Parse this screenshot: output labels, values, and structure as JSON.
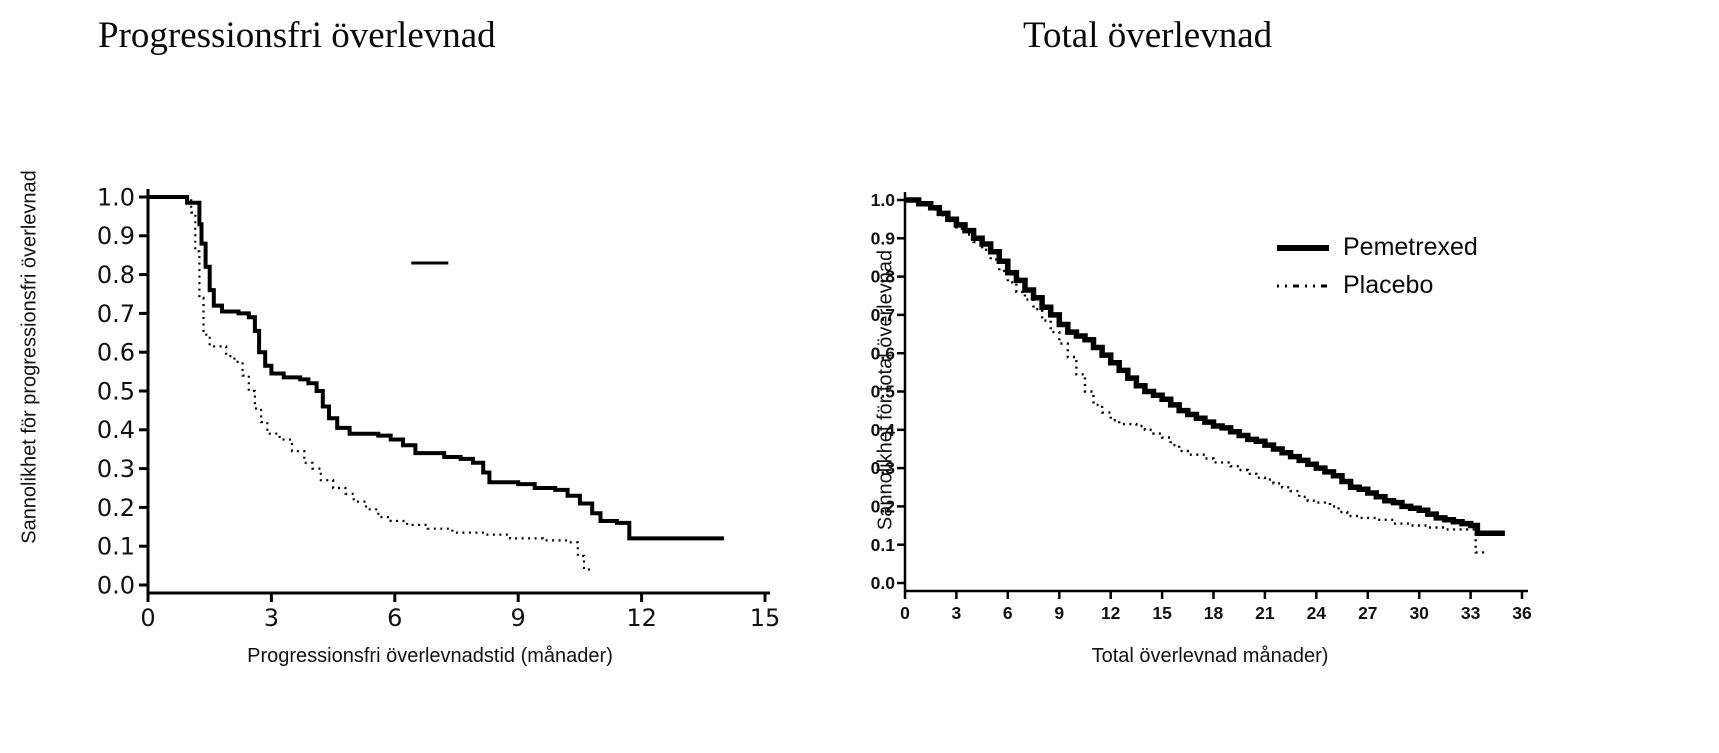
{
  "figure": {
    "background_color": "#ffffff",
    "curve_color": "#000000",
    "text_color": "#111111",
    "description": "Two Kaplan-Meier survival curves comparing Pemetrexed vs Placebo"
  },
  "chart_data": [
    {
      "type": "line",
      "subtype": "kaplan-meier-step",
      "title": "Progressionsfri överlevnad",
      "xlabel": "Progressionsfri överlevnadstid (månader)",
      "ylabel": "Sannolikhet för progressionsfri överlevnad",
      "xlim": [
        0,
        15
      ],
      "ylim": [
        0.0,
        1.0
      ],
      "xticks": [
        0,
        3,
        6,
        9,
        12,
        15
      ],
      "xtick_labels": [
        "0",
        "3",
        "6",
        "9",
        "12",
        "15"
      ],
      "yticks": [
        1.0,
        0.9,
        0.8,
        0.7,
        0.6,
        0.5,
        0.4,
        0.3,
        0.2,
        0.1,
        0.0
      ],
      "ytick_labels": [
        "1.0",
        "0.9",
        "0.8",
        "0.7",
        "0.6",
        "0.5",
        "0.4",
        "0.3",
        "0.2",
        "0.1",
        "0.0"
      ],
      "grid": false,
      "legend": "none",
      "series": [
        {
          "name": "Pemetrexed",
          "style": "solid",
          "line_width": 4,
          "color": "#000000",
          "points": [
            [
              0,
              1.0
            ],
            [
              0.85,
              1.0
            ],
            [
              0.95,
              0.985
            ],
            [
              1.15,
              0.985
            ],
            [
              1.25,
              0.93
            ],
            [
              1.3,
              0.88
            ],
            [
              1.4,
              0.82
            ],
            [
              1.5,
              0.76
            ],
            [
              1.6,
              0.72
            ],
            [
              1.8,
              0.705
            ],
            [
              2.2,
              0.7
            ],
            [
              2.45,
              0.69
            ],
            [
              2.6,
              0.655
            ],
            [
              2.7,
              0.6
            ],
            [
              2.85,
              0.565
            ],
            [
              3.0,
              0.545
            ],
            [
              3.3,
              0.535
            ],
            [
              3.7,
              0.53
            ],
            [
              3.9,
              0.52
            ],
            [
              4.1,
              0.5
            ],
            [
              4.25,
              0.46
            ],
            [
              4.4,
              0.43
            ],
            [
              4.6,
              0.405
            ],
            [
              4.9,
              0.39
            ],
            [
              5.6,
              0.385
            ],
            [
              5.9,
              0.375
            ],
            [
              6.2,
              0.36
            ],
            [
              6.5,
              0.34
            ],
            [
              7.2,
              0.33
            ],
            [
              7.6,
              0.325
            ],
            [
              7.9,
              0.315
            ],
            [
              8.15,
              0.29
            ],
            [
              8.3,
              0.265
            ],
            [
              9.0,
              0.26
            ],
            [
              9.4,
              0.25
            ],
            [
              9.9,
              0.245
            ],
            [
              10.2,
              0.23
            ],
            [
              10.5,
              0.21
            ],
            [
              10.8,
              0.185
            ],
            [
              11.0,
              0.165
            ],
            [
              11.4,
              0.16
            ],
            [
              11.7,
              0.12
            ],
            [
              14.0,
              0.12
            ]
          ]
        },
        {
          "name": "Placebo",
          "style": "dotted",
          "line_width": 2.2,
          "color": "#000000",
          "points": [
            [
              0,
              1.0
            ],
            [
              0.9,
              1.0
            ],
            [
              1.05,
              0.96
            ],
            [
              1.15,
              0.86
            ],
            [
              1.25,
              0.74
            ],
            [
              1.35,
              0.645
            ],
            [
              1.5,
              0.615
            ],
            [
              1.9,
              0.59
            ],
            [
              2.1,
              0.575
            ],
            [
              2.3,
              0.54
            ],
            [
              2.45,
              0.5
            ],
            [
              2.6,
              0.455
            ],
            [
              2.75,
              0.42
            ],
            [
              2.9,
              0.39
            ],
            [
              3.2,
              0.375
            ],
            [
              3.5,
              0.345
            ],
            [
              3.8,
              0.315
            ],
            [
              4.0,
              0.3
            ],
            [
              4.2,
              0.27
            ],
            [
              4.5,
              0.25
            ],
            [
              4.8,
              0.235
            ],
            [
              5.0,
              0.215
            ],
            [
              5.3,
              0.195
            ],
            [
              5.6,
              0.175
            ],
            [
              5.9,
              0.165
            ],
            [
              6.3,
              0.155
            ],
            [
              6.8,
              0.145
            ],
            [
              7.4,
              0.135
            ],
            [
              8.2,
              0.13
            ],
            [
              8.8,
              0.12
            ],
            [
              9.6,
              0.115
            ],
            [
              10.2,
              0.11
            ],
            [
              10.45,
              0.075
            ],
            [
              10.6,
              0.04
            ],
            [
              10.8,
              0.04
            ]
          ]
        }
      ],
      "annotations": [
        {
          "type": "segment",
          "x1": 6.4,
          "x2": 7.3,
          "y": 0.83
        }
      ]
    },
    {
      "type": "line",
      "subtype": "kaplan-meier-step",
      "title": "Total överlevnad",
      "xlabel": "Total överlevnad månader)",
      "ylabel": "Sannolikhet för total överlevnad",
      "xlim": [
        0,
        36
      ],
      "ylim": [
        0.0,
        1.0
      ],
      "xticks": [
        0,
        3,
        6,
        9,
        12,
        15,
        18,
        21,
        24,
        27,
        30,
        33,
        36
      ],
      "xtick_labels": [
        "0",
        "3",
        "6",
        "9",
        "12",
        "15",
        "18",
        "21",
        "24",
        "27",
        "30",
        "33",
        "36"
      ],
      "yticks": [
        1.0,
        0.9,
        0.8,
        0.7,
        0.6,
        0.5,
        0.4,
        0.3,
        0.2,
        0.1,
        0.0
      ],
      "ytick_labels": [
        "1.0",
        "0.9",
        "0.8",
        "0.7",
        "0.6",
        "0.5",
        "0.4",
        "0.3",
        "0.2",
        "0.1",
        "0.0"
      ],
      "grid": false,
      "legend": {
        "position": "upper right",
        "entries": [
          "Pemetrexed",
          "Placebo"
        ]
      },
      "series": [
        {
          "name": "Pemetrexed",
          "style": "solid",
          "line_width": 5.5,
          "color": "#000000",
          "points": [
            [
              0,
              1.0
            ],
            [
              0.8,
              0.99
            ],
            [
              1.5,
              0.98
            ],
            [
              2.0,
              0.965
            ],
            [
              2.5,
              0.95
            ],
            [
              3.0,
              0.935
            ],
            [
              3.5,
              0.92
            ],
            [
              4.0,
              0.9
            ],
            [
              4.5,
              0.885
            ],
            [
              5.0,
              0.865
            ],
            [
              5.5,
              0.84
            ],
            [
              6.0,
              0.81
            ],
            [
              6.5,
              0.79
            ],
            [
              7.0,
              0.765
            ],
            [
              7.5,
              0.745
            ],
            [
              8.0,
              0.72
            ],
            [
              8.5,
              0.7
            ],
            [
              9.0,
              0.675
            ],
            [
              9.5,
              0.655
            ],
            [
              10.0,
              0.645
            ],
            [
              10.5,
              0.635
            ],
            [
              11.0,
              0.615
            ],
            [
              11.5,
              0.595
            ],
            [
              12.0,
              0.575
            ],
            [
              12.5,
              0.555
            ],
            [
              13.0,
              0.535
            ],
            [
              13.5,
              0.515
            ],
            [
              14.0,
              0.5
            ],
            [
              14.5,
              0.49
            ],
            [
              15.0,
              0.48
            ],
            [
              15.5,
              0.465
            ],
            [
              16.0,
              0.45
            ],
            [
              16.5,
              0.44
            ],
            [
              17.0,
              0.43
            ],
            [
              17.5,
              0.42
            ],
            [
              18.0,
              0.41
            ],
            [
              18.5,
              0.405
            ],
            [
              19.0,
              0.395
            ],
            [
              19.5,
              0.385
            ],
            [
              20.0,
              0.375
            ],
            [
              20.5,
              0.37
            ],
            [
              21.0,
              0.36
            ],
            [
              21.5,
              0.35
            ],
            [
              22.0,
              0.34
            ],
            [
              22.5,
              0.33
            ],
            [
              23.0,
              0.32
            ],
            [
              23.5,
              0.31
            ],
            [
              24.0,
              0.3
            ],
            [
              24.5,
              0.29
            ],
            [
              25.0,
              0.28
            ],
            [
              25.5,
              0.265
            ],
            [
              26.0,
              0.25
            ],
            [
              26.5,
              0.245
            ],
            [
              27.0,
              0.235
            ],
            [
              27.5,
              0.225
            ],
            [
              28.0,
              0.215
            ],
            [
              28.5,
              0.21
            ],
            [
              29.0,
              0.2
            ],
            [
              29.5,
              0.195
            ],
            [
              30.0,
              0.19
            ],
            [
              30.5,
              0.18
            ],
            [
              31.0,
              0.17
            ],
            [
              31.5,
              0.165
            ],
            [
              32.0,
              0.16
            ],
            [
              32.5,
              0.155
            ],
            [
              33.0,
              0.15
            ],
            [
              33.4,
              0.13
            ],
            [
              35.0,
              0.13
            ]
          ]
        },
        {
          "name": "Placebo",
          "style": "dotted",
          "line_width": 2.4,
          "color": "#000000",
          "points": [
            [
              0,
              1.0
            ],
            [
              0.8,
              0.99
            ],
            [
              1.5,
              0.975
            ],
            [
              2.0,
              0.96
            ],
            [
              2.5,
              0.945
            ],
            [
              3.0,
              0.925
            ],
            [
              3.5,
              0.91
            ],
            [
              4.0,
              0.89
            ],
            [
              4.5,
              0.87
            ],
            [
              5.0,
              0.845
            ],
            [
              5.5,
              0.815
            ],
            [
              6.0,
              0.785
            ],
            [
              6.5,
              0.76
            ],
            [
              7.0,
              0.74
            ],
            [
              7.5,
              0.715
            ],
            [
              8.0,
              0.685
            ],
            [
              8.5,
              0.655
            ],
            [
              9.0,
              0.625
            ],
            [
              9.5,
              0.59
            ],
            [
              10.0,
              0.545
            ],
            [
              10.5,
              0.5
            ],
            [
              11.0,
              0.465
            ],
            [
              11.5,
              0.445
            ],
            [
              12.0,
              0.425
            ],
            [
              12.5,
              0.415
            ],
            [
              13.5,
              0.41
            ],
            [
              14.0,
              0.4
            ],
            [
              14.5,
              0.39
            ],
            [
              15.0,
              0.38
            ],
            [
              15.5,
              0.36
            ],
            [
              16.0,
              0.345
            ],
            [
              16.5,
              0.335
            ],
            [
              17.5,
              0.325
            ],
            [
              18.0,
              0.315
            ],
            [
              19.0,
              0.305
            ],
            [
              19.5,
              0.295
            ],
            [
              20.0,
              0.285
            ],
            [
              20.5,
              0.275
            ],
            [
              21.0,
              0.27
            ],
            [
              21.5,
              0.26
            ],
            [
              22.0,
              0.25
            ],
            [
              22.5,
              0.24
            ],
            [
              23.0,
              0.225
            ],
            [
              23.5,
              0.215
            ],
            [
              24.0,
              0.21
            ],
            [
              24.8,
              0.2
            ],
            [
              25.3,
              0.185
            ],
            [
              25.8,
              0.175
            ],
            [
              26.5,
              0.17
            ],
            [
              27.5,
              0.165
            ],
            [
              28.5,
              0.155
            ],
            [
              29.5,
              0.15
            ],
            [
              30.5,
              0.145
            ],
            [
              31.5,
              0.14
            ],
            [
              33.0,
              0.14
            ],
            [
              33.3,
              0.08
            ],
            [
              33.8,
              0.08
            ]
          ]
        }
      ],
      "annotations": []
    }
  ]
}
